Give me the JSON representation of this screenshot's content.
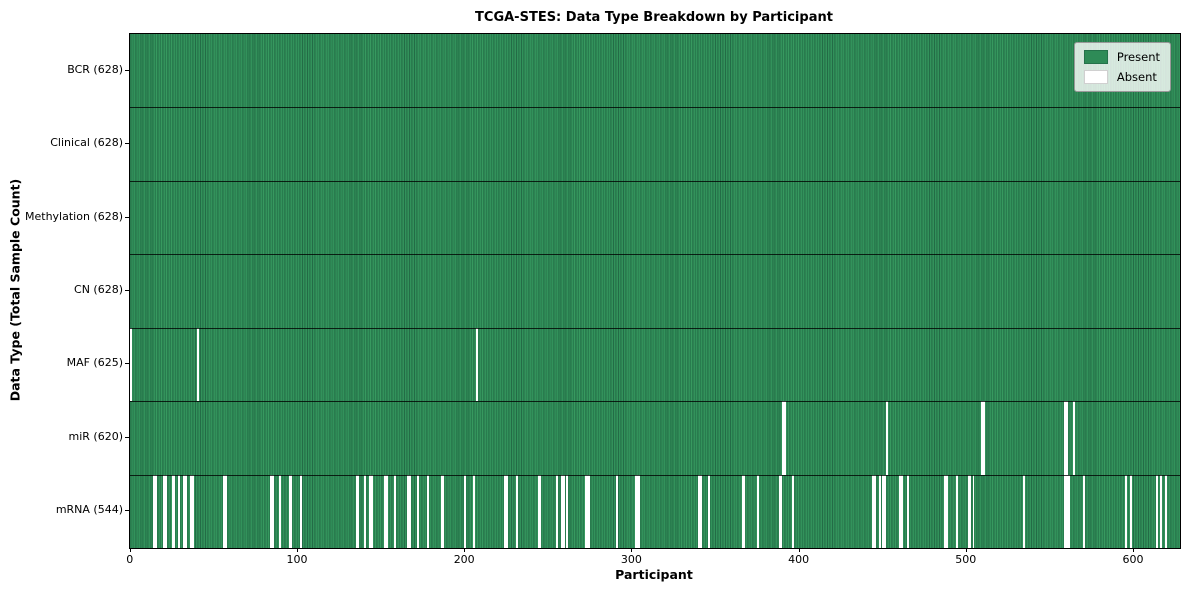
{
  "chart_data": {
    "type": "heatmap",
    "title": "TCGA-STES: Data Type Breakdown by Participant",
    "xlabel": "Participant",
    "ylabel": "Data Type (Total Sample Count)",
    "n_participants": 628,
    "xlim": [
      -0.5,
      627.5
    ],
    "x_ticks": [
      0,
      100,
      200,
      300,
      400,
      500,
      600
    ],
    "legend": {
      "present": "Present",
      "absent": "Absent"
    },
    "colors": {
      "present": "#2e8b57",
      "present_edge": "#236c46",
      "absent": "#ffffff"
    },
    "grid": "row-separators",
    "legend_position": "upper-right",
    "rows": [
      {
        "label": "BCR",
        "total": 628,
        "tick": "BCR (628)",
        "absent": []
      },
      {
        "label": "Clinical",
        "total": 628,
        "tick": "Clinical (628)",
        "absent": []
      },
      {
        "label": "Methylation",
        "total": 628,
        "tick": "Methylation (628)",
        "absent": []
      },
      {
        "label": "CN",
        "total": 628,
        "tick": "CN (628)",
        "absent": []
      },
      {
        "label": "MAF",
        "total": 625,
        "tick": "MAF (625)",
        "absent": [
          0,
          40,
          207
        ]
      },
      {
        "label": "miR",
        "total": 620,
        "tick": "miR (620)",
        "absent": [
          390,
          391,
          452,
          509,
          510,
          559,
          560,
          564
        ]
      },
      {
        "label": "mRNA",
        "total": 544,
        "tick": "mRNA (544)",
        "absent": [
          14,
          15,
          20,
          21,
          25,
          26,
          29,
          32,
          33,
          36,
          37,
          56,
          57,
          84,
          85,
          89,
          95,
          96,
          102,
          135,
          136,
          140,
          143,
          144,
          152,
          153,
          158,
          166,
          167,
          172,
          178,
          186,
          187,
          200,
          205,
          224,
          225,
          231,
          244,
          245,
          255,
          258,
          259,
          261,
          272,
          273,
          274,
          291,
          302,
          303,
          304,
          340,
          341,
          346,
          366,
          367,
          375,
          388,
          389,
          396,
          444,
          445,
          448,
          450,
          451,
          460,
          461,
          465,
          487,
          488,
          494,
          501,
          502,
          504,
          534,
          559,
          560,
          561,
          570,
          595,
          598,
          614,
          616,
          619
        ]
      }
    ]
  }
}
